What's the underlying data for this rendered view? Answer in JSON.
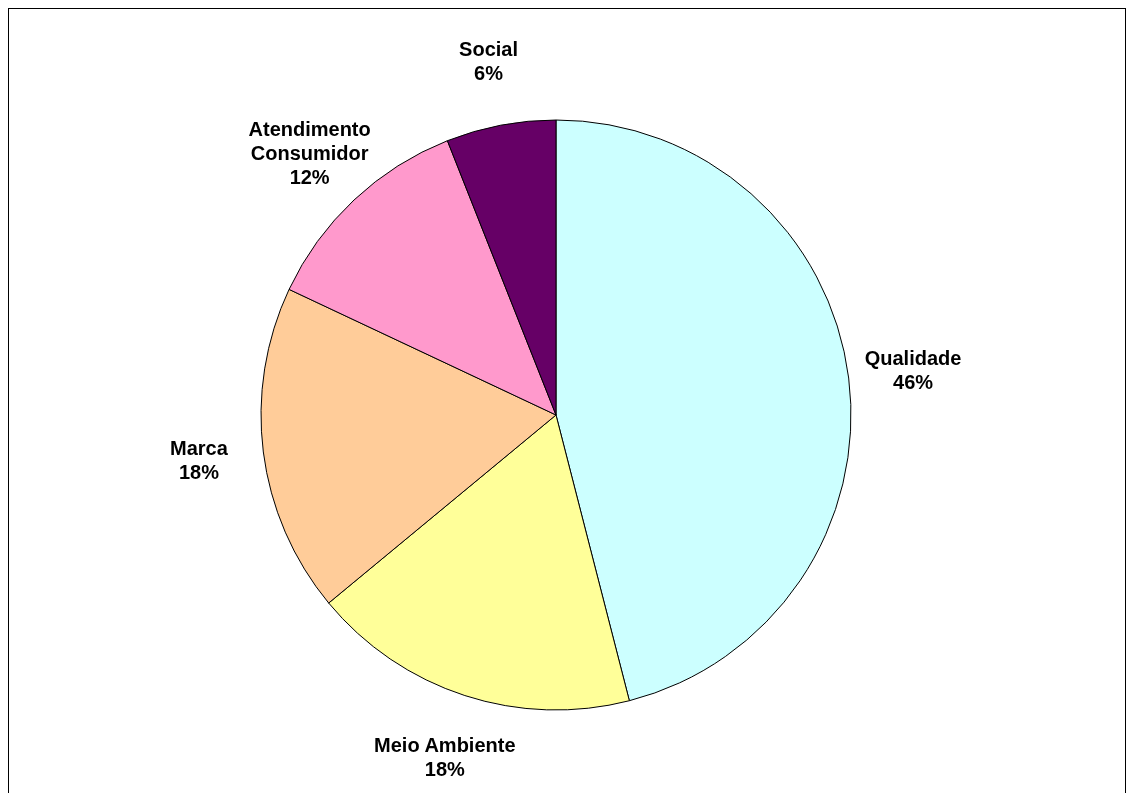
{
  "chart_data": {
    "type": "pie",
    "categories": [
      "Qualidade",
      "Meio Ambiente",
      "Marca",
      "Atendimento Consumidor",
      "Social"
    ],
    "values": [
      46,
      18,
      18,
      12,
      6
    ],
    "colors": [
      "#ccffff",
      "#ffff99",
      "#ffcc99",
      "#ff99cc",
      "#660066"
    ],
    "value_labels": [
      "46%",
      "18%",
      "18%",
      "12%",
      "6%"
    ]
  }
}
